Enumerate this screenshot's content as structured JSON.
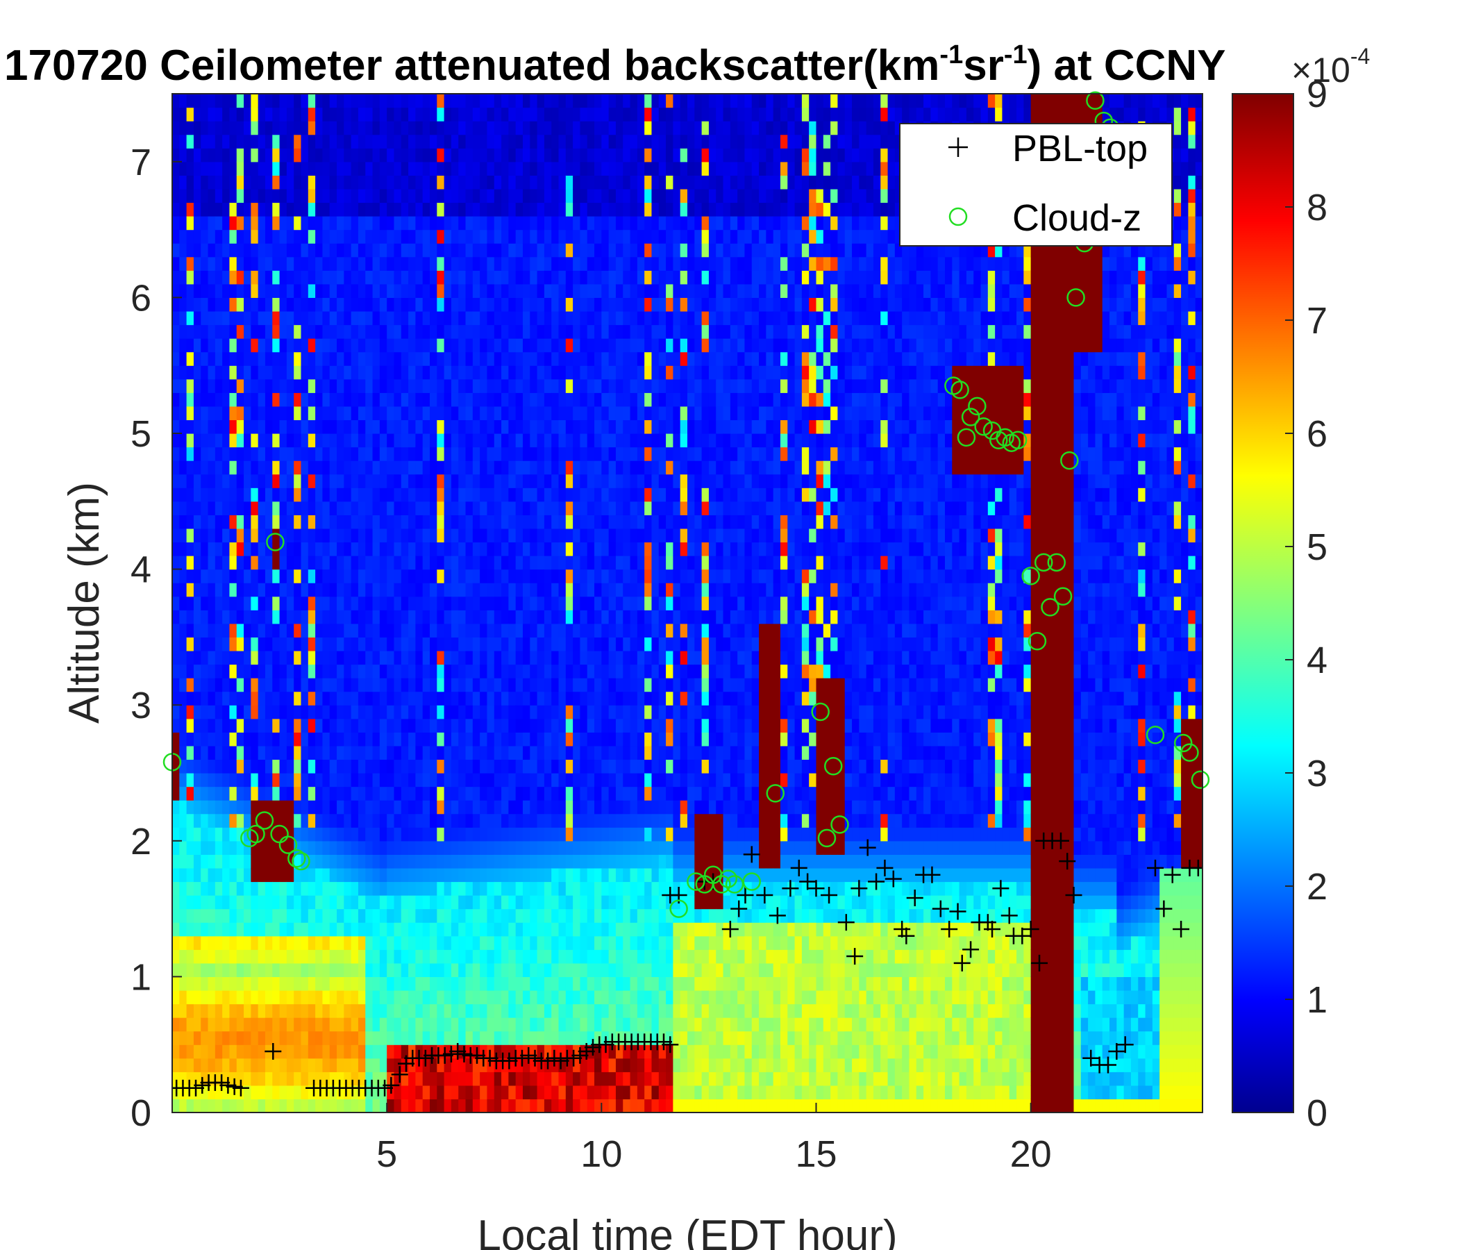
{
  "chart_data": {
    "type": "heatmap",
    "title": {
      "prefix": "170720 Ceilometer attenuated backscatter(km",
      "sup1": "-1",
      "mid": "sr",
      "sup2": "-1",
      "suffix": ") at CCNY"
    },
    "xlabel": "Local time (EDT hour)",
    "ylabel": "Altitude (km)",
    "xlim": [
      0,
      24
    ],
    "ylim": [
      0,
      7.5
    ],
    "x_ticks": [
      5,
      10,
      15,
      20
    ],
    "y_ticks": [
      0,
      1,
      2,
      3,
      4,
      5,
      6,
      7
    ],
    "colorbar": {
      "min": 0,
      "max": 9,
      "ticks": [
        0,
        1,
        2,
        3,
        4,
        5,
        6,
        7,
        8,
        9
      ],
      "exponent_base": "×10",
      "exponent_power": "-4",
      "colormap": "jet"
    },
    "legend": {
      "placement": "top-right",
      "entries": [
        {
          "label": "PBL-top",
          "marker": "+",
          "color": "#000000"
        },
        {
          "label": "Cloud-z",
          "marker": "o",
          "color": "#22dd22"
        }
      ]
    },
    "series": [
      {
        "name": "PBL-top",
        "points": [
          [
            0.1,
            0.18
          ],
          [
            0.25,
            0.18
          ],
          [
            0.4,
            0.18
          ],
          [
            0.55,
            0.18
          ],
          [
            0.7,
            0.2
          ],
          [
            0.85,
            0.22
          ],
          [
            1.0,
            0.22
          ],
          [
            1.15,
            0.22
          ],
          [
            1.3,
            0.2
          ],
          [
            1.45,
            0.19
          ],
          [
            1.6,
            0.18
          ],
          [
            2.35,
            0.45
          ],
          [
            3.3,
            0.18
          ],
          [
            3.45,
            0.18
          ],
          [
            3.6,
            0.18
          ],
          [
            3.75,
            0.18
          ],
          [
            3.9,
            0.18
          ],
          [
            4.05,
            0.18
          ],
          [
            4.2,
            0.18
          ],
          [
            4.35,
            0.18
          ],
          [
            4.5,
            0.18
          ],
          [
            4.65,
            0.18
          ],
          [
            4.8,
            0.18
          ],
          [
            4.95,
            0.18
          ],
          [
            5.1,
            0.2
          ],
          [
            5.3,
            0.28
          ],
          [
            5.45,
            0.36
          ],
          [
            5.6,
            0.4
          ],
          [
            5.75,
            0.4
          ],
          [
            5.9,
            0.4
          ],
          [
            6.05,
            0.42
          ],
          [
            6.2,
            0.42
          ],
          [
            6.35,
            0.42
          ],
          [
            6.5,
            0.43
          ],
          [
            6.65,
            0.45
          ],
          [
            6.8,
            0.43
          ],
          [
            6.95,
            0.42
          ],
          [
            7.1,
            0.42
          ],
          [
            7.25,
            0.4
          ],
          [
            7.4,
            0.4
          ],
          [
            7.55,
            0.38
          ],
          [
            7.7,
            0.38
          ],
          [
            7.85,
            0.38
          ],
          [
            8.0,
            0.4
          ],
          [
            8.15,
            0.4
          ],
          [
            8.3,
            0.42
          ],
          [
            8.45,
            0.4
          ],
          [
            8.6,
            0.38
          ],
          [
            8.75,
            0.38
          ],
          [
            8.9,
            0.4
          ],
          [
            9.05,
            0.38
          ],
          [
            9.2,
            0.4
          ],
          [
            9.35,
            0.4
          ],
          [
            9.5,
            0.42
          ],
          [
            9.65,
            0.45
          ],
          [
            9.8,
            0.48
          ],
          [
            9.95,
            0.5
          ],
          [
            10.1,
            0.5
          ],
          [
            10.25,
            0.52
          ],
          [
            10.4,
            0.52
          ],
          [
            10.55,
            0.52
          ],
          [
            10.7,
            0.52
          ],
          [
            10.85,
            0.52
          ],
          [
            11.0,
            0.52
          ],
          [
            11.15,
            0.52
          ],
          [
            11.3,
            0.52
          ],
          [
            11.45,
            0.52
          ],
          [
            11.6,
            0.5
          ],
          [
            11.6,
            1.6
          ],
          [
            11.8,
            1.6
          ],
          [
            12.4,
            1.7
          ],
          [
            12.6,
            1.7
          ],
          [
            13.0,
            1.35
          ],
          [
            13.2,
            1.5
          ],
          [
            13.35,
            1.6
          ],
          [
            13.5,
            1.9
          ],
          [
            13.8,
            1.6
          ],
          [
            14.1,
            1.45
          ],
          [
            14.4,
            1.65
          ],
          [
            14.6,
            1.8
          ],
          [
            14.8,
            1.7
          ],
          [
            15.0,
            1.65
          ],
          [
            15.3,
            1.6
          ],
          [
            15.7,
            1.4
          ],
          [
            15.9,
            1.15
          ],
          [
            16.0,
            1.65
          ],
          [
            16.2,
            1.95
          ],
          [
            16.4,
            1.7
          ],
          [
            16.6,
            1.8
          ],
          [
            16.8,
            1.72
          ],
          [
            17.0,
            1.35
          ],
          [
            17.1,
            1.3
          ],
          [
            17.3,
            1.58
          ],
          [
            17.5,
            1.75
          ],
          [
            17.7,
            1.75
          ],
          [
            17.9,
            1.5
          ],
          [
            18.1,
            1.35
          ],
          [
            18.3,
            1.48
          ],
          [
            18.4,
            1.1
          ],
          [
            18.6,
            1.2
          ],
          [
            18.8,
            1.4
          ],
          [
            19.0,
            1.4
          ],
          [
            19.1,
            1.35
          ],
          [
            19.3,
            1.65
          ],
          [
            19.5,
            1.45
          ],
          [
            19.6,
            1.3
          ],
          [
            19.8,
            1.3
          ],
          [
            20.0,
            1.35
          ],
          [
            20.2,
            1.1
          ],
          [
            20.3,
            2.0
          ],
          [
            20.5,
            2.0
          ],
          [
            20.7,
            2.0
          ],
          [
            20.85,
            1.85
          ],
          [
            21.0,
            1.6
          ],
          [
            21.4,
            0.4
          ],
          [
            21.6,
            0.35
          ],
          [
            21.8,
            0.35
          ],
          [
            22.0,
            0.45
          ],
          [
            22.2,
            0.5
          ],
          [
            22.9,
            1.8
          ],
          [
            23.1,
            1.5
          ],
          [
            23.3,
            1.75
          ],
          [
            23.5,
            1.35
          ],
          [
            23.7,
            1.8
          ],
          [
            23.9,
            1.8
          ]
        ]
      },
      {
        "name": "Cloud-z",
        "points": [
          [
            0.0,
            2.58
          ],
          [
            1.8,
            2.02
          ],
          [
            1.95,
            2.05
          ],
          [
            2.15,
            2.15
          ],
          [
            2.4,
            4.2
          ],
          [
            2.5,
            2.05
          ],
          [
            2.7,
            1.97
          ],
          [
            2.9,
            1.87
          ],
          [
            3.0,
            1.85
          ],
          [
            11.8,
            1.5
          ],
          [
            12.2,
            1.7
          ],
          [
            12.4,
            1.68
          ],
          [
            12.6,
            1.75
          ],
          [
            12.8,
            1.68
          ],
          [
            12.95,
            1.72
          ],
          [
            13.1,
            1.68
          ],
          [
            13.5,
            1.7
          ],
          [
            14.05,
            2.35
          ],
          [
            15.1,
            2.95
          ],
          [
            15.25,
            2.02
          ],
          [
            15.4,
            2.55
          ],
          [
            15.55,
            2.12
          ],
          [
            18.2,
            5.35
          ],
          [
            18.35,
            5.32
          ],
          [
            18.5,
            4.97
          ],
          [
            18.6,
            5.12
          ],
          [
            18.75,
            5.2
          ],
          [
            18.9,
            5.05
          ],
          [
            19.1,
            5.02
          ],
          [
            19.25,
            4.95
          ],
          [
            19.4,
            4.97
          ],
          [
            19.55,
            4.93
          ],
          [
            19.7,
            4.95
          ],
          [
            20.0,
            3.95
          ],
          [
            20.15,
            3.47
          ],
          [
            20.3,
            4.05
          ],
          [
            20.45,
            3.72
          ],
          [
            20.6,
            4.05
          ],
          [
            20.75,
            3.8
          ],
          [
            20.9,
            4.8
          ],
          [
            21.05,
            6.0
          ],
          [
            21.25,
            6.4
          ],
          [
            21.5,
            7.45
          ],
          [
            21.7,
            7.3
          ],
          [
            21.85,
            7.25
          ],
          [
            22.9,
            2.78
          ],
          [
            23.55,
            2.72
          ],
          [
            23.7,
            2.65
          ],
          [
            23.95,
            2.45
          ]
        ]
      }
    ]
  }
}
